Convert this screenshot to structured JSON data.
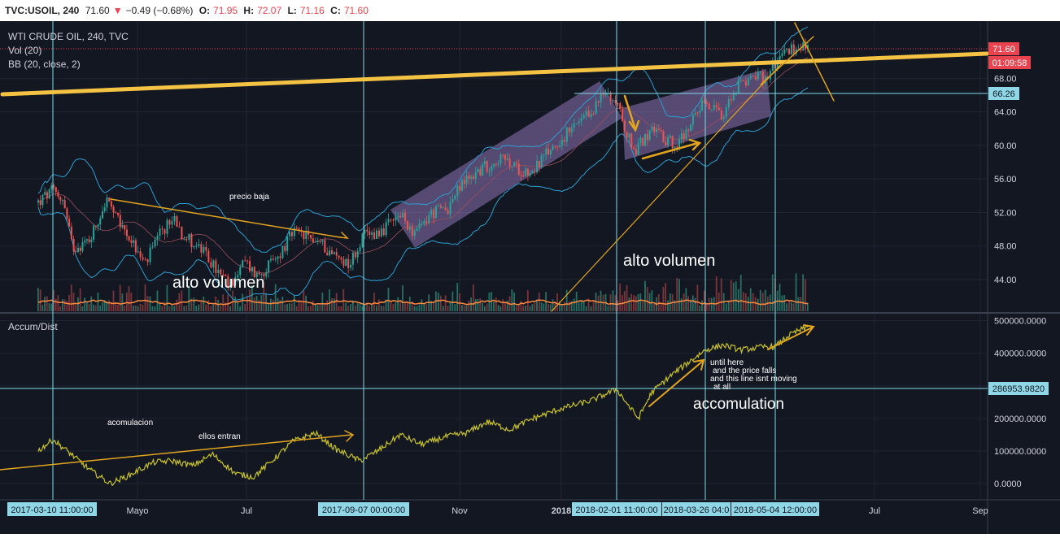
{
  "header": {
    "symbol": "TVC:USOIL, 240",
    "last": "71.60",
    "change": "−0.49 (−0.68%)",
    "o_label": "O:",
    "o_value": "71.95",
    "h_label": "H:",
    "h_value": "72.07",
    "l_label": "L:",
    "l_value": "71.16",
    "c_label": "C:",
    "c_value": "71.60"
  },
  "colors": {
    "background": "#131722",
    "candle_up": "#26a69a",
    "candle_down": "#ef5350",
    "bollinger": "#2a9fd0",
    "trendline": "#e2a51d",
    "major_trendline": "#f5c343",
    "channel": "#b89ce0",
    "crosshair": "#7fdbe8",
    "price_badge": "#e8434e",
    "crosshair_badge": "#8fd6e6"
  },
  "chart_data": [
    {
      "type": "line",
      "title": "WTI CRUDE OIL, 240, TVC",
      "indicators": [
        "Vol (20)",
        "BB (20, close, 2)"
      ],
      "y_ticks": [
        44.0,
        48.0,
        52.0,
        56.0,
        60.0,
        64.0,
        68.0
      ],
      "y_tick_labels": [
        "44.00",
        "48.00",
        "52.00",
        "56.00",
        "60.00",
        "64.00",
        "68.00"
      ],
      "ylim": [
        40.2,
        76.0
      ],
      "last_price": 71.6,
      "last_price_label": "71.60",
      "countdown": "01:09:58",
      "crosshair_price": 66.26,
      "crosshair_price_label": "66.26",
      "x_labels": [
        "2017-03-10 11:00:00",
        "Mayo",
        "Jul",
        "2017-09-07 00:00:00",
        "Nov",
        "2018",
        "2018-02-01 11:00:00",
        "2018-03-26 04:0",
        "2018-05-04 12:00:00",
        "Jul",
        "Sep"
      ],
      "price_path": [
        [
          "2017-03-01",
          53.2
        ],
        [
          "2017-03-10",
          54.6
        ],
        [
          "2017-03-16",
          53.6
        ],
        [
          "2017-03-22",
          47.8
        ],
        [
          "2017-04-01",
          48.6
        ],
        [
          "2017-04-12",
          53.5
        ],
        [
          "2017-04-18",
          51.2
        ],
        [
          "2017-04-26",
          49.1
        ],
        [
          "2017-05-05",
          45.8
        ],
        [
          "2017-05-14",
          49.5
        ],
        [
          "2017-05-22",
          51.5
        ],
        [
          "2017-05-26",
          49.5
        ],
        [
          "2017-06-05",
          47.7
        ],
        [
          "2017-06-13",
          45.5
        ],
        [
          "2017-06-21",
          43.2
        ],
        [
          "2017-06-30",
          46.1
        ],
        [
          "2017-07-07",
          44.5
        ],
        [
          "2017-07-18",
          46.3
        ],
        [
          "2017-07-28",
          49.6
        ],
        [
          "2017-08-03",
          49.3
        ],
        [
          "2017-08-12",
          48.5
        ],
        [
          "2017-08-20",
          47.0
        ],
        [
          "2017-08-30",
          45.9
        ],
        [
          "2017-09-07",
          49.2
        ],
        [
          "2017-09-18",
          49.9
        ],
        [
          "2017-09-28",
          51.6
        ],
        [
          "2017-10-07",
          49.4
        ],
        [
          "2017-10-15",
          51.8
        ],
        [
          "2017-10-25",
          52.5
        ],
        [
          "2017-11-03",
          55.6
        ],
        [
          "2017-11-12",
          56.9
        ],
        [
          "2017-11-25",
          58.5
        ],
        [
          "2017-12-05",
          57.3
        ],
        [
          "2017-12-14",
          56.8
        ],
        [
          "2017-12-25",
          59.4
        ],
        [
          "2018-01-05",
          61.5
        ],
        [
          "2018-01-16",
          63.5
        ],
        [
          "2018-01-25",
          66.1
        ],
        [
          "2018-02-01",
          65.2
        ],
        [
          "2018-02-06",
          62.1
        ],
        [
          "2018-02-12",
          59.3
        ],
        [
          "2018-02-20",
          61.6
        ],
        [
          "2018-02-28",
          61.0
        ],
        [
          "2018-03-08",
          60.1
        ],
        [
          "2018-03-15",
          61.2
        ],
        [
          "2018-03-22",
          64.8
        ],
        [
          "2018-03-26",
          65.2
        ],
        [
          "2018-04-04",
          63.2
        ],
        [
          "2018-04-12",
          66.8
        ],
        [
          "2018-04-20",
          68.4
        ],
        [
          "2018-04-28",
          68.0
        ],
        [
          "2018-05-04",
          69.8
        ],
        [
          "2018-05-10",
          71.4
        ],
        [
          "2018-05-16",
          71.6
        ],
        [
          "2018-05-21",
          72.2
        ],
        [
          "2018-05-23",
          71.6
        ]
      ],
      "annotations": [
        "precio baja",
        "alto volumen",
        "alto volumen"
      ]
    },
    {
      "type": "line",
      "title": "Accum/Dist",
      "y_ticks": [
        0,
        100000,
        200000,
        300000,
        400000,
        500000
      ],
      "y_tick_labels": [
        "0.0000",
        "100000.0000",
        "200000.0000",
        "300000.0000",
        "400000.0000",
        "500000.0000"
      ],
      "ylim": [
        -20000,
        520000
      ],
      "crosshair_value": 286953.982,
      "crosshair_value_label": "286953.9820",
      "series": [
        {
          "values": [
            [
              "2017-03-01",
              100000
            ],
            [
              "2017-03-10",
              135000
            ],
            [
              "2017-03-20",
              95000
            ],
            [
              "2017-04-01",
              45000
            ],
            [
              "2017-04-14",
              0
            ],
            [
              "2017-04-26",
              25000
            ],
            [
              "2017-05-10",
              65000
            ],
            [
              "2017-05-20",
              70000
            ],
            [
              "2017-06-01",
              55000
            ],
            [
              "2017-06-12",
              90000
            ],
            [
              "2017-06-25",
              30000
            ],
            [
              "2017-07-05",
              20000
            ],
            [
              "2017-07-18",
              80000
            ],
            [
              "2017-07-28",
              130000
            ],
            [
              "2017-08-10",
              155000
            ],
            [
              "2017-08-22",
              105000
            ],
            [
              "2017-09-05",
              70000
            ],
            [
              "2017-09-15",
              100000
            ],
            [
              "2017-09-28",
              150000
            ],
            [
              "2017-10-10",
              120000
            ],
            [
              "2017-10-25",
              145000
            ],
            [
              "2017-11-05",
              155000
            ],
            [
              "2017-11-18",
              190000
            ],
            [
              "2017-12-01",
              165000
            ],
            [
              "2017-12-15",
              200000
            ],
            [
              "2018-01-01",
              230000
            ],
            [
              "2018-01-18",
              255000
            ],
            [
              "2018-02-01",
              290000
            ],
            [
              "2018-02-08",
              240000
            ],
            [
              "2018-02-14",
              200000
            ],
            [
              "2018-02-22",
              280000
            ],
            [
              "2018-03-05",
              330000
            ],
            [
              "2018-03-18",
              380000
            ],
            [
              "2018-03-26",
              410000
            ],
            [
              "2018-04-05",
              425000
            ],
            [
              "2018-04-15",
              410000
            ],
            [
              "2018-04-28",
              420000
            ],
            [
              "2018-05-04",
              420000
            ],
            [
              "2018-05-12",
              455000
            ],
            [
              "2018-05-18",
              470000
            ],
            [
              "2018-05-23",
              480000
            ]
          ]
        }
      ],
      "annotations": [
        "acomulacion",
        "ellos entran",
        "until here",
        "and the price falls",
        "and this line isnt moving",
        "at all",
        "accomulation"
      ]
    }
  ]
}
